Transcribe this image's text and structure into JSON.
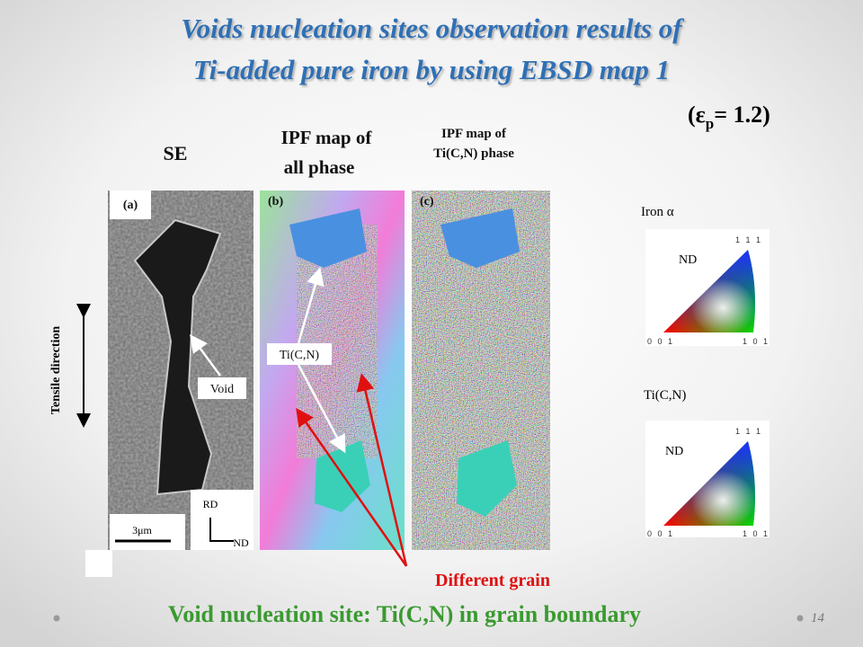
{
  "title": [
    "Voids nucleation sites observation results of",
    "Ti-added pure iron by using EBSD map 1"
  ],
  "strain": {
    "prefix": "(ε",
    "subscript": "p",
    "suffix": "= 1.2)"
  },
  "panels": [
    {
      "heading": [
        "SE"
      ],
      "label": "(a)"
    },
    {
      "heading": [
        "IPF map of",
        "all phase"
      ],
      "label": "(b)"
    },
    {
      "heading": [
        "IPF map of",
        "Ti(C,N) phase"
      ],
      "label": "(c)"
    }
  ],
  "annotations": {
    "tensile_direction": "Tensile direction",
    "void": "Void",
    "scale_bar": "3μm",
    "rd": "RD",
    "nd": "ND",
    "tin": "Ti(C,N)",
    "different_grain": "Different grain"
  },
  "legends": [
    {
      "title": "Iron α",
      "axis": "ND",
      "corners": [
        "0 0 1",
        "1 0 1",
        "1 1 1"
      ]
    },
    {
      "title": "Ti(C,N)",
      "axis": "ND",
      "corners": [
        "0 0 1",
        "1 0 1",
        "1 1 1"
      ]
    }
  ],
  "footer": "Void nucleation site: Ti(C,N) in grain boundary",
  "page_number": "14"
}
